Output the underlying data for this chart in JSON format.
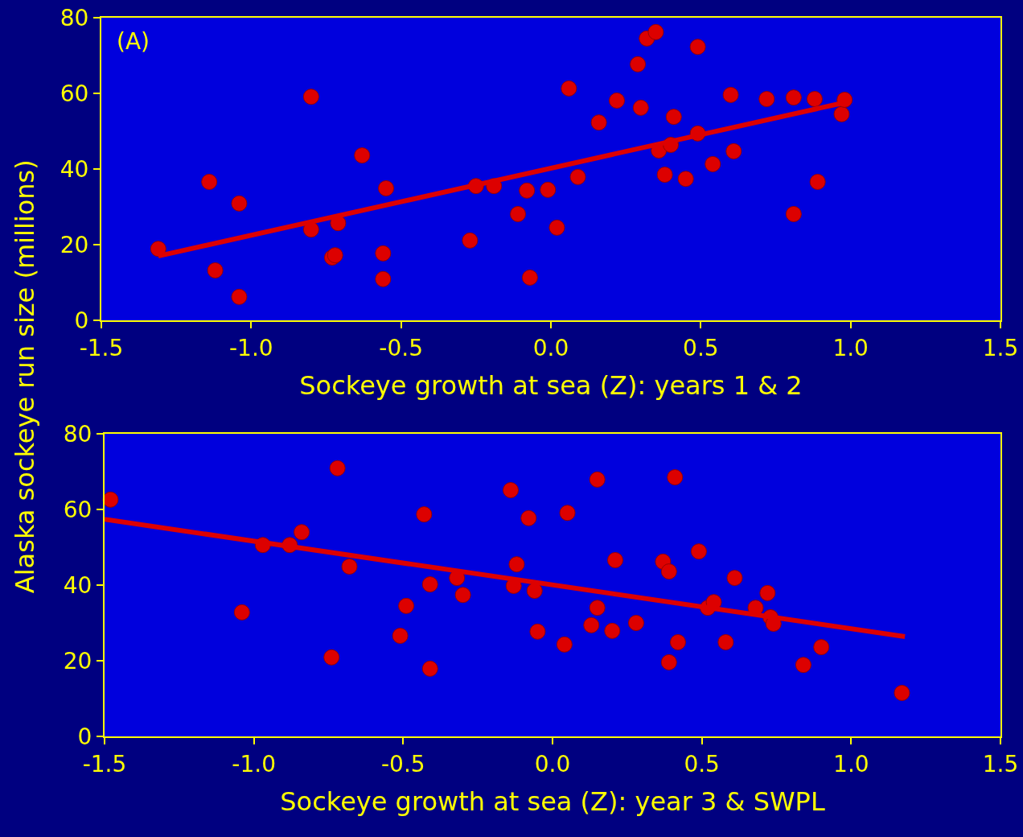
{
  "chart_data": [
    {
      "type": "scatter",
      "ylabel": "Alaska sockeye run size (millions)",
      "xlabel": "Sockeye growth at sea (Z): years 1 & 2",
      "annotations": [
        "(A)"
      ],
      "xlim": [
        -1.5,
        1.5
      ],
      "xticks": [
        {
          "value": -1.5,
          "label": "-1.5"
        },
        {
          "value": -1,
          "label": "-1.0"
        },
        {
          "value": -0.5,
          "label": "-0.5"
        },
        {
          "value": 0,
          "label": "0.0"
        },
        {
          "value": 0.5,
          "label": "0.5"
        },
        {
          "value": 1,
          "label": "1.0"
        },
        {
          "value": 1.5,
          "label": "1.5"
        }
      ],
      "ylim": [
        0,
        80
      ],
      "yticks": [
        0,
        20,
        40,
        60,
        80
      ],
      "grid": false,
      "marker": "circle",
      "series": [
        {
          "color": "#dd0000",
          "x": [
            -1.31,
            -1.14,
            -1.12,
            -1.04,
            -1.04,
            -0.8,
            -0.8,
            -0.73,
            -0.72,
            -0.71,
            -0.63,
            -0.56,
            -0.56,
            -0.55,
            -0.27,
            -0.25,
            -0.19,
            -0.11,
            -0.08,
            -0.07,
            -0.01,
            0.02,
            0.06,
            0.09,
            0.16,
            0.22,
            0.29,
            0.3,
            0.32,
            0.35,
            0.36,
            0.38,
            0.4,
            0.41,
            0.45,
            0.49,
            0.49,
            0.54,
            0.6,
            0.61,
            0.72,
            0.81,
            0.81,
            0.88,
            0.89,
            0.97,
            0.98
          ],
          "values": [
            18.9,
            36.6,
            13.2,
            30.9,
            6.2,
            59.1,
            24,
            16.6,
            17.2,
            25.7,
            43.6,
            17.7,
            10.9,
            34.9,
            21.1,
            35.5,
            35.5,
            28.1,
            34.3,
            11.3,
            34.5,
            24.5,
            61.3,
            37.9,
            52.3,
            58.1,
            67.7,
            56.2,
            74.5,
            76.2,
            44.9,
            38.5,
            46.4,
            53.8,
            37.4,
            72.3,
            49.4,
            41.3,
            59.6,
            44.7,
            58.5,
            58.9,
            28.1,
            58.5,
            36.6,
            54.5,
            58.3
          ]
        },
        {
          "type": "line",
          "color": "#dd0000",
          "marker": "none",
          "x": [
            -1.31,
            0.97
          ],
          "values": [
            17,
            57.4
          ]
        }
      ]
    },
    {
      "type": "scatter",
      "xlabel": "Sockeye growth at sea (Z): year 3 & SWPL",
      "xlim": [
        -1.5,
        1.5
      ],
      "xticks": [
        {
          "value": -1.5,
          "label": "-1.5"
        },
        {
          "value": -1,
          "label": "-1.0"
        },
        {
          "value": -0.5,
          "label": "-0.5"
        },
        {
          "value": 0,
          "label": "0.0"
        },
        {
          "value": 0.5,
          "label": "0.5"
        },
        {
          "value": 1,
          "label": "1.0"
        },
        {
          "value": 1.5,
          "label": "1.5"
        }
      ],
      "ylim": [
        0,
        80
      ],
      "yticks": [
        0,
        20,
        40,
        60,
        80
      ],
      "grid": false,
      "marker": "circle",
      "series": [
        {
          "color": "#dd0000",
          "x": [
            -1.48,
            -1.04,
            -0.97,
            -0.88,
            -0.84,
            -0.74,
            -0.72,
            -0.68,
            -0.51,
            -0.49,
            -0.43,
            -0.41,
            -0.41,
            -0.32,
            -0.3,
            -0.14,
            -0.13,
            -0.12,
            -0.08,
            -0.06,
            -0.05,
            0.04,
            0.05,
            0.13,
            0.15,
            0.15,
            0.2,
            0.21,
            0.28,
            0.37,
            0.39,
            0.39,
            0.41,
            0.42,
            0.49,
            0.52,
            0.54,
            0.58,
            0.61,
            0.68,
            0.72,
            0.73,
            0.74,
            0.84,
            0.9,
            1.17
          ],
          "values": [
            62.6,
            32.8,
            50.6,
            50.6,
            54,
            20.9,
            70.9,
            44.9,
            26.6,
            34.5,
            58.7,
            40.2,
            17.9,
            41.9,
            37.4,
            65.1,
            39.8,
            45.5,
            57.7,
            38.5,
            27.7,
            24.3,
            59.1,
            29.4,
            34,
            67.9,
            27.9,
            46.6,
            30,
            46.2,
            19.6,
            43.6,
            68.5,
            24.9,
            48.9,
            34,
            35.5,
            24.9,
            41.9,
            34,
            37.9,
            31.5,
            29.8,
            18.9,
            23.6,
            11.5
          ]
        },
        {
          "type": "line",
          "color": "#dd0000",
          "marker": "none",
          "x": [
            -1.5,
            1.18
          ],
          "values": [
            57.4,
            26.4
          ]
        }
      ]
    }
  ]
}
